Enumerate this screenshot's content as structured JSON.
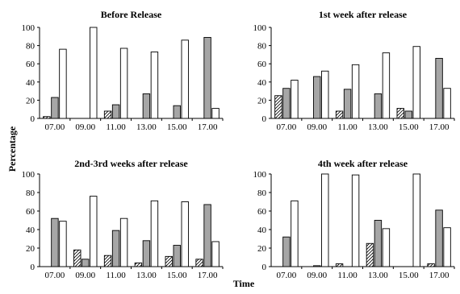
{
  "figure": {
    "ylabel": "Percentage",
    "xlabel": "Time"
  },
  "chart_data": [
    {
      "type": "bar",
      "title": "Before Release",
      "categories": [
        "07.00",
        "09.00",
        "11.00",
        "13.00",
        "15.00",
        "17.00"
      ],
      "ylim": [
        0,
        100
      ],
      "yticks": [
        0,
        20,
        40,
        60,
        80,
        100
      ],
      "series": [
        {
          "pattern": "hatched",
          "color": "#ffffff",
          "values": [
            2,
            0,
            8,
            0,
            0,
            0
          ]
        },
        {
          "pattern": "solid",
          "color": "#a6a6a6",
          "values": [
            23,
            0,
            15,
            27,
            14,
            89
          ]
        },
        {
          "pattern": "solid",
          "color": "#ffffff",
          "values": [
            76,
            100,
            77,
            73,
            86,
            11
          ]
        }
      ]
    },
    {
      "type": "bar",
      "title": "1st week after release",
      "categories": [
        "07.00",
        "09.00",
        "11.00",
        "13.00",
        "15.00",
        "17.00"
      ],
      "ylim": [
        0,
        100
      ],
      "yticks": [
        0,
        20,
        40,
        60,
        80,
        100
      ],
      "series": [
        {
          "pattern": "hatched",
          "color": "#ffffff",
          "values": [
            25,
            0,
            8,
            0,
            11,
            0
          ]
        },
        {
          "pattern": "solid",
          "color": "#a6a6a6",
          "values": [
            33,
            46,
            32,
            27,
            8,
            66
          ]
        },
        {
          "pattern": "solid",
          "color": "#ffffff",
          "values": [
            42,
            52,
            59,
            72,
            79,
            33
          ]
        }
      ]
    },
    {
      "type": "bar",
      "title": "2nd-3rd weeks after release",
      "categories": [
        "07.00",
        "09.00",
        "11.00",
        "13.00",
        "15.00",
        "17.00"
      ],
      "ylim": [
        0,
        100
      ],
      "yticks": [
        0,
        20,
        40,
        60,
        80,
        100
      ],
      "series": [
        {
          "pattern": "hatched",
          "color": "#ffffff",
          "values": [
            0,
            18,
            12,
            4,
            11,
            8
          ]
        },
        {
          "pattern": "solid",
          "color": "#a6a6a6",
          "values": [
            52,
            8,
            39,
            28,
            23,
            67
          ]
        },
        {
          "pattern": "solid",
          "color": "#ffffff",
          "values": [
            49,
            76,
            52,
            71,
            70,
            27
          ]
        }
      ]
    },
    {
      "type": "bar",
      "title": "4th week after release",
      "categories": [
        "07.00",
        "09.00",
        "11.00",
        "13.00",
        "15.00",
        "17.00"
      ],
      "ylim": [
        0,
        100
      ],
      "yticks": [
        0,
        20,
        40,
        60,
        80,
        100
      ],
      "series": [
        {
          "pattern": "hatched",
          "color": "#ffffff",
          "values": [
            0,
            0,
            3,
            25,
            0,
            3
          ]
        },
        {
          "pattern": "solid",
          "color": "#a6a6a6",
          "values": [
            32,
            1,
            0,
            50,
            0,
            61
          ]
        },
        {
          "pattern": "solid",
          "color": "#ffffff",
          "values": [
            71,
            100,
            99,
            41,
            100,
            42
          ]
        }
      ]
    }
  ]
}
